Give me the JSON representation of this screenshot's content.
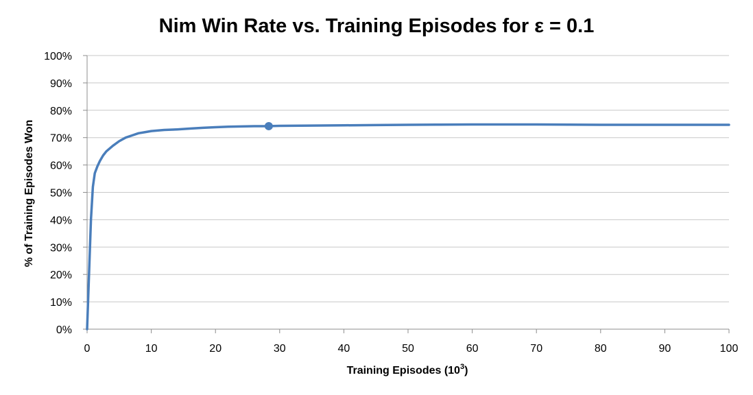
{
  "chart_data": {
    "type": "line",
    "title": "Nim Win Rate vs. Training Episodes for ε = 0.1",
    "xlabel": "Training Episodes (10",
    "xlabel_sup": "3",
    "xlabel_close": ")",
    "ylabel": "% of Training  Episodes Won",
    "xlim": [
      0,
      100
    ],
    "ylim": [
      0,
      100
    ],
    "xticks": [
      0,
      10,
      20,
      30,
      40,
      50,
      60,
      70,
      80,
      90,
      100
    ],
    "yticks": [
      0,
      10,
      20,
      30,
      40,
      50,
      60,
      70,
      80,
      90,
      100
    ],
    "ytick_suffix": "%",
    "grid": true,
    "line_color": "#4a7ebb",
    "series": [
      {
        "x": [
          0,
          0.3,
          0.6,
          0.9,
          1.2,
          1.6,
          2,
          2.5,
          3,
          3.5,
          4,
          5,
          6,
          7,
          8,
          9,
          10,
          12,
          14,
          16,
          18,
          20,
          22,
          24,
          26,
          28,
          30,
          35,
          40,
          45,
          50,
          55,
          60,
          65,
          70,
          75,
          80,
          85,
          90,
          95,
          100
        ],
        "y": [
          0,
          20,
          40,
          52,
          57,
          59.5,
          61.5,
          63.5,
          65,
          66,
          67,
          68.7,
          70,
          70.8,
          71.6,
          72,
          72.4,
          72.8,
          73,
          73.3,
          73.6,
          73.8,
          74,
          74.1,
          74.2,
          74.2,
          74.3,
          74.4,
          74.5,
          74.6,
          74.7,
          74.75,
          74.8,
          74.8,
          74.8,
          74.75,
          74.7,
          74.7,
          74.7,
          74.7,
          74.7
        ]
      }
    ],
    "marker": {
      "x": 28.3,
      "y": 74.2
    }
  }
}
